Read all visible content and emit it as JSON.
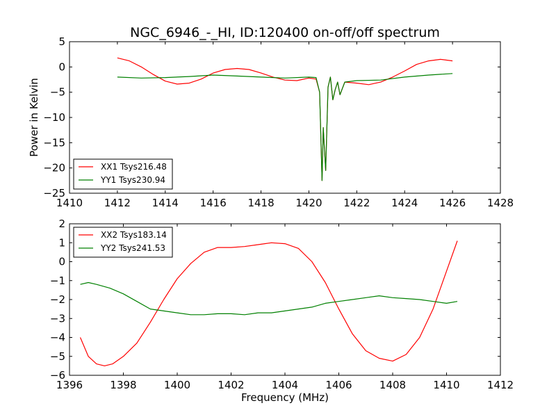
{
  "chart_data": [
    {
      "type": "line",
      "title": "NGC_6946_-_HI, ID:120400 on-off/off spectrum",
      "xlabel": "",
      "ylabel": "Power in Kelvin",
      "xlim": [
        1410,
        1428
      ],
      "ylim": [
        -25,
        5
      ],
      "xticks": [
        1410,
        1412,
        1414,
        1416,
        1418,
        1420,
        1422,
        1424,
        1426,
        1428
      ],
      "yticks": [
        5,
        0,
        -5,
        -10,
        -15,
        -20,
        -25
      ],
      "grid": false,
      "legend_position": "lower-left",
      "series": [
        {
          "name": "XX1 Tsys216.48",
          "color": "#ff0000",
          "x": [
            1412,
            1412.5,
            1413,
            1413.5,
            1414,
            1414.5,
            1415,
            1415.5,
            1416,
            1416.5,
            1417,
            1417.5,
            1418,
            1418.5,
            1419,
            1419.5,
            1420,
            1420.3,
            1420.45,
            1420.55,
            1420.6,
            1420.7,
            1420.8,
            1420.9,
            1421,
            1421.1,
            1421.2,
            1421.3,
            1421.5,
            1422,
            1422.5,
            1423,
            1423.5,
            1424,
            1424.5,
            1425,
            1425.5,
            1426
          ],
          "y": [
            1.8,
            1.2,
            0.0,
            -1.5,
            -2.8,
            -3.4,
            -3.2,
            -2.4,
            -1.2,
            -0.5,
            -0.3,
            -0.5,
            -1.2,
            -2.0,
            -2.6,
            -2.7,
            -2.2,
            -2.4,
            -5.0,
            -22.5,
            -12.0,
            -20.5,
            -4.0,
            -2.0,
            -6.5,
            -4.5,
            -3.0,
            -5.5,
            -3.0,
            -3.2,
            -3.5,
            -3.0,
            -2.0,
            -0.8,
            0.5,
            1.2,
            1.5,
            1.2
          ]
        },
        {
          "name": "YY1 Tsys230.94",
          "color": "#008000",
          "x": [
            1412,
            1413,
            1414,
            1415,
            1416,
            1417,
            1418,
            1419,
            1420,
            1420.3,
            1420.45,
            1420.55,
            1420.6,
            1420.7,
            1420.8,
            1420.9,
            1421,
            1421.1,
            1421.2,
            1421.3,
            1421.5,
            1422,
            1423,
            1424,
            1425,
            1426
          ],
          "y": [
            -2.0,
            -2.2,
            -2.1,
            -1.9,
            -1.6,
            -1.8,
            -2.0,
            -2.2,
            -2.0,
            -2.1,
            -5.0,
            -22.5,
            -12.0,
            -20.5,
            -4.0,
            -2.0,
            -6.5,
            -4.5,
            -3.0,
            -5.5,
            -3.0,
            -2.7,
            -2.6,
            -2.0,
            -1.6,
            -1.3
          ]
        }
      ]
    },
    {
      "type": "line",
      "title": "",
      "xlabel": "Frequency (MHz)",
      "ylabel": "",
      "xlim": [
        1396,
        1412
      ],
      "ylim": [
        -6,
        2
      ],
      "xticks": [
        1396,
        1398,
        1400,
        1402,
        1404,
        1406,
        1408,
        1410,
        1412
      ],
      "yticks": [
        2,
        1,
        0,
        -1,
        -2,
        -3,
        -4,
        -5,
        -6
      ],
      "grid": false,
      "legend_position": "upper-left",
      "series": [
        {
          "name": "XX2 Tsys183.14",
          "color": "#ff0000",
          "x": [
            1396.4,
            1396.7,
            1397,
            1397.3,
            1397.6,
            1398,
            1398.5,
            1399,
            1399.5,
            1400,
            1400.5,
            1401,
            1401.5,
            1402,
            1402.5,
            1403,
            1403.5,
            1404,
            1404.5,
            1405,
            1405.5,
            1406,
            1406.5,
            1407,
            1407.5,
            1408,
            1408.5,
            1409,
            1409.5,
            1410,
            1410.4
          ],
          "y": [
            -4.0,
            -5.0,
            -5.4,
            -5.5,
            -5.4,
            -5.0,
            -4.3,
            -3.2,
            -2.0,
            -0.9,
            -0.1,
            0.5,
            0.75,
            0.75,
            0.8,
            0.9,
            1.0,
            0.95,
            0.7,
            0.0,
            -1.1,
            -2.5,
            -3.8,
            -4.7,
            -5.1,
            -5.25,
            -4.9,
            -4.0,
            -2.5,
            -0.5,
            1.1
          ]
        },
        {
          "name": "YY2 Tsys241.53",
          "color": "#008000",
          "x": [
            1396.4,
            1396.7,
            1397,
            1397.5,
            1398,
            1398.5,
            1399,
            1399.5,
            1400,
            1400.5,
            1401,
            1401.5,
            1402,
            1402.5,
            1403,
            1403.5,
            1404,
            1404.5,
            1405,
            1405.5,
            1406,
            1406.5,
            1407,
            1407.5,
            1408,
            1408.5,
            1409,
            1409.5,
            1410,
            1410.4
          ],
          "y": [
            -1.2,
            -1.1,
            -1.2,
            -1.4,
            -1.7,
            -2.1,
            -2.5,
            -2.6,
            -2.7,
            -2.8,
            -2.8,
            -2.75,
            -2.75,
            -2.8,
            -2.7,
            -2.7,
            -2.6,
            -2.5,
            -2.4,
            -2.2,
            -2.1,
            -2.0,
            -1.9,
            -1.8,
            -1.9,
            -1.95,
            -2.0,
            -2.1,
            -2.2,
            -2.1
          ]
        }
      ]
    }
  ]
}
